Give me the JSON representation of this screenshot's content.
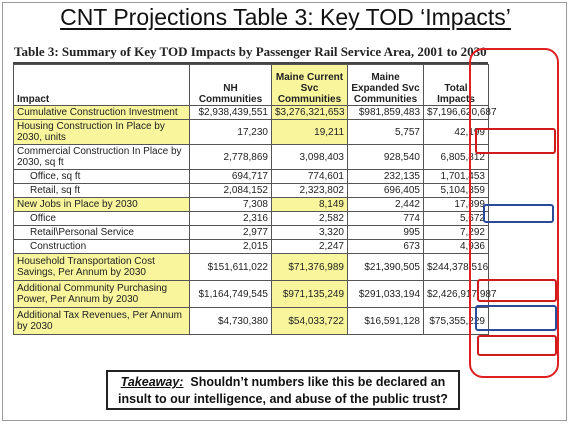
{
  "slide_title": "CNT Projections Table 3: Key TOD ‘Impacts’",
  "table_title": "Table 3: Summary of Key TOD Impacts by Passenger Rail Service Area, 2001 to 2030",
  "headers": {
    "impact": "Impact",
    "nh": "NH Communities",
    "maine_current": "Maine Current Svc Communities",
    "maine_expanded": "Maine Expanded Svc Communities",
    "total": "Total Impacts"
  },
  "rows": [
    {
      "label": "Cumulative Construction Investment",
      "nh": "$2,938,439,551",
      "mc": "$3,276,321,653",
      "me": "$981,859,483",
      "total": "$7,196,620,687"
    },
    {
      "label": "Housing Construction In Place by 2030, units",
      "nh": "17,230",
      "mc": "19,211",
      "me": "5,757",
      "total": "42,199"
    },
    {
      "label": "Commercial Construction In Place by 2030, sq ft",
      "nh": "2,778,869",
      "mc": "3,098,403",
      "me": "928,540",
      "total": "6,805,812"
    },
    {
      "label": "Office, sq ft",
      "nh": "694,717",
      "mc": "774,601",
      "me": "232,135",
      "total": "1,701,453"
    },
    {
      "label": "Retail, sq ft",
      "nh": "2,084,152",
      "mc": "2,323,802",
      "me": "696,405",
      "total": "5,104,359"
    },
    {
      "label": "New Jobs in Place by 2030",
      "nh": "7,308",
      "mc": "8,149",
      "me": "2,442",
      "total": "17,899"
    },
    {
      "label": "Office",
      "nh": "2,316",
      "mc": "2,582",
      "me": "774",
      "total": "5,672"
    },
    {
      "label": "Retail\\Personal Service",
      "nh": "2,977",
      "mc": "3,320",
      "me": "995",
      "total": "7,292"
    },
    {
      "label": "Construction",
      "nh": "2,015",
      "mc": "2,247",
      "me": "673",
      "total": "4,936"
    },
    {
      "label": "Household Transportation Cost Savings, Per Annum by 2030",
      "nh": "$151,611,022",
      "mc": "$71,376,989",
      "me": "$21,390,505",
      "total": "$244,378,516"
    },
    {
      "label": "Additional Community Purchasing Power, Per Annum by 2030",
      "nh": "$1,164,749,545",
      "mc": "$971,135,249",
      "me": "$291,033,194",
      "total": "$2,426,917,987"
    },
    {
      "label": "Additional Tax Revenues, Per Annum by 2030",
      "nh": "$4,730,380",
      "mc": "$54,033,722",
      "me": "$16,591,128",
      "total": "$75,355,229"
    }
  ],
  "takeaway": {
    "label": "Takeaway:",
    "text": "Shouldn’t numbers like this be declared an insult to our intelligence, and abuse of the public trust?"
  }
}
